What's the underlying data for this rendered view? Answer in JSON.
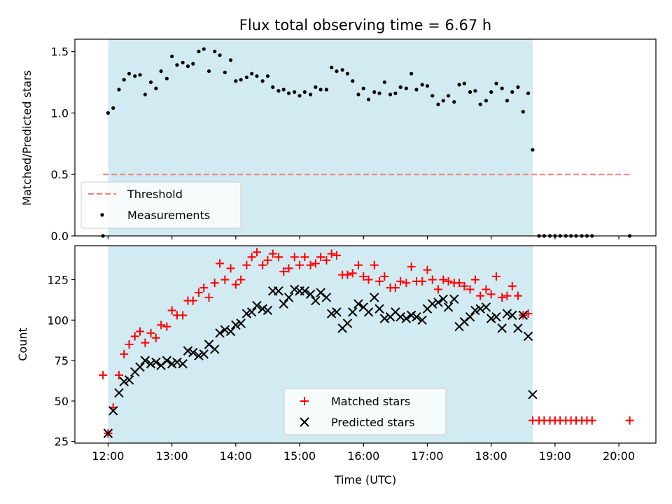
{
  "chart_data": [
    {
      "type": "scatter",
      "title": "Flux total observing time = 6.67 h",
      "xlabel": "",
      "ylabel": "Matched/Predicted stars",
      "ylim": [
        0,
        1.6
      ],
      "yticks": [
        "0.0",
        "0.5",
        "1.0",
        "1.5"
      ],
      "xlim": [
        11.48,
        20.58
      ],
      "observing_window": [
        12.0,
        18.65
      ],
      "shade_color": "#add8e6",
      "grid": false,
      "legend_placement": "lower-left",
      "threshold": {
        "name": "Threshold",
        "value": 0.5,
        "x_range": [
          11.92,
          20.17
        ],
        "color": "#f08080"
      },
      "measurements": {
        "name": "Measurements",
        "color": "#000000",
        "points": [
          [
            11.92,
            0.0
          ],
          [
            12.0,
            1.0
          ],
          [
            12.08,
            1.04
          ],
          [
            12.17,
            1.19
          ],
          [
            12.25,
            1.27
          ],
          [
            12.33,
            1.32
          ],
          [
            12.42,
            1.3
          ],
          [
            12.5,
            1.31
          ],
          [
            12.58,
            1.15
          ],
          [
            12.67,
            1.25
          ],
          [
            12.75,
            1.2
          ],
          [
            12.83,
            1.34
          ],
          [
            12.92,
            1.28
          ],
          [
            13.0,
            1.46
          ],
          [
            13.08,
            1.39
          ],
          [
            13.17,
            1.41
          ],
          [
            13.25,
            1.38
          ],
          [
            13.33,
            1.4
          ],
          [
            13.42,
            1.5
          ],
          [
            13.5,
            1.52
          ],
          [
            13.58,
            1.34
          ],
          [
            13.67,
            1.5
          ],
          [
            13.75,
            1.47
          ],
          [
            13.83,
            1.33
          ],
          [
            13.92,
            1.43
          ],
          [
            14.0,
            1.26
          ],
          [
            14.08,
            1.27
          ],
          [
            14.17,
            1.29
          ],
          [
            14.25,
            1.32
          ],
          [
            14.33,
            1.3
          ],
          [
            14.42,
            1.26
          ],
          [
            14.5,
            1.3
          ],
          [
            14.58,
            1.21
          ],
          [
            14.67,
            1.18
          ],
          [
            14.75,
            1.19
          ],
          [
            14.83,
            1.16
          ],
          [
            14.92,
            1.17
          ],
          [
            15.0,
            1.14
          ],
          [
            15.08,
            1.17
          ],
          [
            15.17,
            1.15
          ],
          [
            15.25,
            1.21
          ],
          [
            15.33,
            1.19
          ],
          [
            15.42,
            1.19
          ],
          [
            15.5,
            1.37
          ],
          [
            15.58,
            1.34
          ],
          [
            15.67,
            1.35
          ],
          [
            15.75,
            1.32
          ],
          [
            15.83,
            1.26
          ],
          [
            15.92,
            1.15
          ],
          [
            16.0,
            1.2
          ],
          [
            16.08,
            1.11
          ],
          [
            16.17,
            1.17
          ],
          [
            16.25,
            1.16
          ],
          [
            16.33,
            1.25
          ],
          [
            16.42,
            1.15
          ],
          [
            16.5,
            1.16
          ],
          [
            16.58,
            1.21
          ],
          [
            16.67,
            1.2
          ],
          [
            16.75,
            1.32
          ],
          [
            16.83,
            1.19
          ],
          [
            16.92,
            1.23
          ],
          [
            17.0,
            1.22
          ],
          [
            17.08,
            1.14
          ],
          [
            17.17,
            1.07
          ],
          [
            17.25,
            1.1
          ],
          [
            17.33,
            1.14
          ],
          [
            17.42,
            1.09
          ],
          [
            17.5,
            1.23
          ],
          [
            17.58,
            1.24
          ],
          [
            17.67,
            1.17
          ],
          [
            17.75,
            1.18
          ],
          [
            17.83,
            1.07
          ],
          [
            17.92,
            1.1
          ],
          [
            18.0,
            1.17
          ],
          [
            18.08,
            1.24
          ],
          [
            18.17,
            1.2
          ],
          [
            18.25,
            1.1
          ],
          [
            18.33,
            1.17
          ],
          [
            18.42,
            1.21
          ],
          [
            18.5,
            1.01
          ],
          [
            18.58,
            1.16
          ],
          [
            18.65,
            0.7
          ],
          [
            18.75,
            0.0
          ],
          [
            18.83,
            0.0
          ],
          [
            18.92,
            0.0
          ],
          [
            19.0,
            0.0
          ],
          [
            19.08,
            0.0
          ],
          [
            19.17,
            0.0
          ],
          [
            19.25,
            0.0
          ],
          [
            19.33,
            0.0
          ],
          [
            19.42,
            0.0
          ],
          [
            19.5,
            0.0
          ],
          [
            19.58,
            0.0
          ],
          [
            20.17,
            0.0
          ]
        ]
      }
    },
    {
      "type": "scatter",
      "xlabel": "Time (UTC)",
      "ylabel": "Count",
      "ylim": [
        24,
        146
      ],
      "yticks": [
        "25",
        "50",
        "75",
        "100",
        "125"
      ],
      "xlim": [
        11.48,
        20.58
      ],
      "xticks": [
        "12:00",
        "13:00",
        "14:00",
        "15:00",
        "16:00",
        "17:00",
        "18:00",
        "19:00",
        "20:00"
      ],
      "observing_window": [
        12.0,
        18.65
      ],
      "shade_color": "#add8e6",
      "grid": false,
      "legend_placement": "lower-center",
      "series": [
        {
          "name": "Matched stars",
          "marker": "plus",
          "color": "#ff0000",
          "points": [
            [
              11.92,
              66
            ],
            [
              12.0,
              30
            ],
            [
              12.08,
              46
            ],
            [
              12.17,
              66
            ],
            [
              12.25,
              79
            ],
            [
              12.33,
              85
            ],
            [
              12.42,
              90
            ],
            [
              12.5,
              93
            ],
            [
              12.58,
              86
            ],
            [
              12.67,
              92
            ],
            [
              12.75,
              89
            ],
            [
              12.83,
              97
            ],
            [
              12.92,
              96
            ],
            [
              13.0,
              106
            ],
            [
              13.08,
              103
            ],
            [
              13.17,
              103
            ],
            [
              13.25,
              112
            ],
            [
              13.33,
              112
            ],
            [
              13.42,
              117
            ],
            [
              13.5,
              120
            ],
            [
              13.58,
              114
            ],
            [
              13.67,
              123
            ],
            [
              13.75,
              135
            ],
            [
              13.83,
              125
            ],
            [
              13.92,
              132
            ],
            [
              14.0,
              122
            ],
            [
              14.08,
              125
            ],
            [
              14.17,
              134
            ],
            [
              14.25,
              139
            ],
            [
              14.33,
              142
            ],
            [
              14.42,
              134
            ],
            [
              14.5,
              137
            ],
            [
              14.58,
              141
            ],
            [
              14.67,
              139
            ],
            [
              14.75,
              130
            ],
            [
              14.83,
              132
            ],
            [
              14.92,
              139
            ],
            [
              15.0,
              134
            ],
            [
              15.08,
              139
            ],
            [
              15.17,
              134
            ],
            [
              15.25,
              135
            ],
            [
              15.33,
              139
            ],
            [
              15.42,
              137
            ],
            [
              15.5,
              141
            ],
            [
              15.58,
              140
            ],
            [
              15.67,
              128
            ],
            [
              15.75,
              128
            ],
            [
              15.83,
              129
            ],
            [
              15.92,
              134
            ],
            [
              16.0,
              127
            ],
            [
              16.08,
              125
            ],
            [
              16.17,
              134
            ],
            [
              16.25,
              124
            ],
            [
              16.33,
              127
            ],
            [
              16.42,
              120
            ],
            [
              16.5,
              120
            ],
            [
              16.58,
              124
            ],
            [
              16.67,
              123
            ],
            [
              16.75,
              133
            ],
            [
              16.83,
              124
            ],
            [
              16.92,
              124
            ],
            [
              17.0,
              131
            ],
            [
              17.08,
              125
            ],
            [
              17.17,
              119
            ],
            [
              17.25,
              125
            ],
            [
              17.33,
              124
            ],
            [
              17.42,
              123
            ],
            [
              17.5,
              123
            ],
            [
              17.58,
              121
            ],
            [
              17.67,
              119
            ],
            [
              17.75,
              125
            ],
            [
              17.83,
              115
            ],
            [
              17.92,
              119
            ],
            [
              18.0,
              116
            ],
            [
              18.08,
              127
            ],
            [
              18.17,
              114
            ],
            [
              18.25,
              115
            ],
            [
              18.33,
              121
            ],
            [
              18.42,
              115
            ],
            [
              18.5,
              103
            ],
            [
              18.58,
              104
            ],
            [
              18.65,
              38
            ],
            [
              18.75,
              38
            ],
            [
              18.83,
              38
            ],
            [
              18.92,
              38
            ],
            [
              19.0,
              38
            ],
            [
              19.08,
              38
            ],
            [
              19.17,
              38
            ],
            [
              19.25,
              38
            ],
            [
              19.33,
              38
            ],
            [
              19.42,
              38
            ],
            [
              19.5,
              38
            ],
            [
              19.58,
              38
            ],
            [
              20.17,
              38
            ]
          ]
        },
        {
          "name": "Predicted stars",
          "marker": "x",
          "color": "#000000",
          "points": [
            [
              12.0,
              30
            ],
            [
              12.08,
              44
            ],
            [
              12.17,
              55
            ],
            [
              12.25,
              62
            ],
            [
              12.33,
              63
            ],
            [
              12.42,
              68
            ],
            [
              12.5,
              71
            ],
            [
              12.58,
              75
            ],
            [
              12.67,
              73
            ],
            [
              12.75,
              74
            ],
            [
              12.83,
              72
            ],
            [
              12.92,
              75
            ],
            [
              13.0,
              73
            ],
            [
              13.08,
              74
            ],
            [
              13.17,
              73
            ],
            [
              13.25,
              81
            ],
            [
              13.33,
              80
            ],
            [
              13.42,
              78
            ],
            [
              13.5,
              79
            ],
            [
              13.58,
              85
            ],
            [
              13.67,
              82
            ],
            [
              13.75,
              92
            ],
            [
              13.83,
              94
            ],
            [
              13.92,
              93
            ],
            [
              14.0,
              97
            ],
            [
              14.08,
              98
            ],
            [
              14.17,
              104
            ],
            [
              14.25,
              105
            ],
            [
              14.33,
              109
            ],
            [
              14.42,
              107
            ],
            [
              14.5,
              106
            ],
            [
              14.58,
              118
            ],
            [
              14.67,
              118
            ],
            [
              14.75,
              110
            ],
            [
              14.83,
              114
            ],
            [
              14.92,
              119
            ],
            [
              15.0,
              118
            ],
            [
              15.08,
              118
            ],
            [
              15.17,
              116
            ],
            [
              15.25,
              112
            ],
            [
              15.33,
              117
            ],
            [
              15.42,
              114
            ],
            [
              15.5,
              104
            ],
            [
              15.58,
              105
            ],
            [
              15.67,
              95
            ],
            [
              15.75,
              98
            ],
            [
              15.83,
              105
            ],
            [
              15.92,
              110
            ],
            [
              16.0,
              108
            ],
            [
              16.08,
              105
            ],
            [
              16.17,
              114
            ],
            [
              16.25,
              107
            ],
            [
              16.33,
              101
            ],
            [
              16.42,
              102
            ],
            [
              16.5,
              105
            ],
            [
              16.58,
              102
            ],
            [
              16.67,
              101
            ],
            [
              16.75,
              103
            ],
            [
              16.83,
              102
            ],
            [
              16.92,
              100
            ],
            [
              17.0,
              107
            ],
            [
              17.08,
              110
            ],
            [
              17.17,
              111
            ],
            [
              17.25,
              113
            ],
            [
              17.33,
              108
            ],
            [
              17.42,
              113
            ],
            [
              17.5,
              96
            ],
            [
              17.58,
              99
            ],
            [
              17.67,
              102
            ],
            [
              17.75,
              106
            ],
            [
              17.83,
              107
            ],
            [
              17.92,
              108
            ],
            [
              18.0,
              101
            ],
            [
              18.08,
              102
            ],
            [
              18.17,
              95
            ],
            [
              18.25,
              104
            ],
            [
              18.33,
              103
            ],
            [
              18.42,
              95
            ],
            [
              18.5,
              103
            ],
            [
              18.58,
              90
            ],
            [
              18.65,
              54
            ]
          ]
        }
      ]
    }
  ]
}
